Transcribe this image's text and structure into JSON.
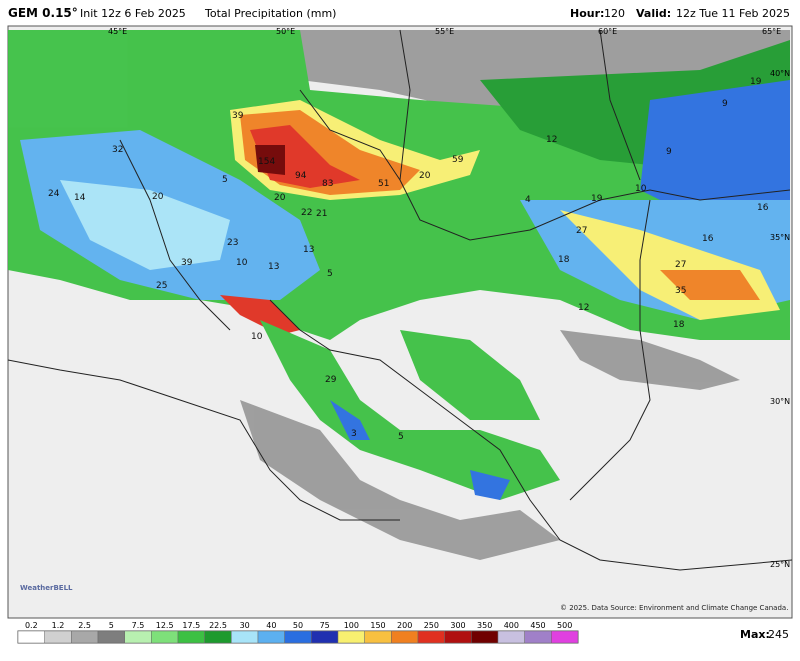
{
  "header": {
    "model": "GEM 0.15°",
    "init": "Init 12z 6 Feb 2025",
    "field": "Total Precipitation (mm)",
    "hour_label": "Hour:",
    "hour": "120",
    "valid_label": "Valid:",
    "valid": "12z Tue 11 Feb 2025"
  },
  "map": {
    "longitude_labels": [
      "45°E",
      "50°E",
      "55°E",
      "60°E",
      "65°E"
    ],
    "latitude_labels": [
      "40°N",
      "35°N",
      "30°N",
      "25°N"
    ],
    "point_values": [
      154,
      94,
      83,
      51,
      39,
      32,
      24,
      14,
      20,
      5,
      20,
      22,
      21,
      20,
      59,
      12,
      9,
      19,
      9,
      10,
      19,
      4,
      27,
      16,
      16,
      27,
      35,
      18,
      18,
      12,
      13,
      13,
      10,
      23,
      39,
      25,
      5,
      10,
      29,
      5,
      3
    ],
    "copyright": "© 2025. Data Source: Environment and Climate Change Canada.",
    "logo": "WeatherBELL"
  },
  "color_scale": {
    "labels": [
      0.2,
      1.2,
      2.5,
      5,
      7.5,
      12.5,
      17.5,
      22.5,
      30,
      40,
      50,
      75,
      100,
      150,
      200,
      250,
      300,
      350,
      400,
      450,
      500
    ],
    "colors": [
      "#ffffff",
      "#d0d0d0",
      "#a8a8a8",
      "#7e7e7e",
      "#b8f0b0",
      "#7ee07a",
      "#3cc043",
      "#1e9a2e",
      "#a8e4f8",
      "#5cb0f0",
      "#2a6ee0",
      "#2030b0",
      "#f8f070",
      "#f8c040",
      "#f08020",
      "#e03020",
      "#b01010",
      "#700000",
      "#c8c0e0",
      "#a080c8",
      "#e040e0"
    ],
    "max_label": "Max:",
    "max": 245
  }
}
